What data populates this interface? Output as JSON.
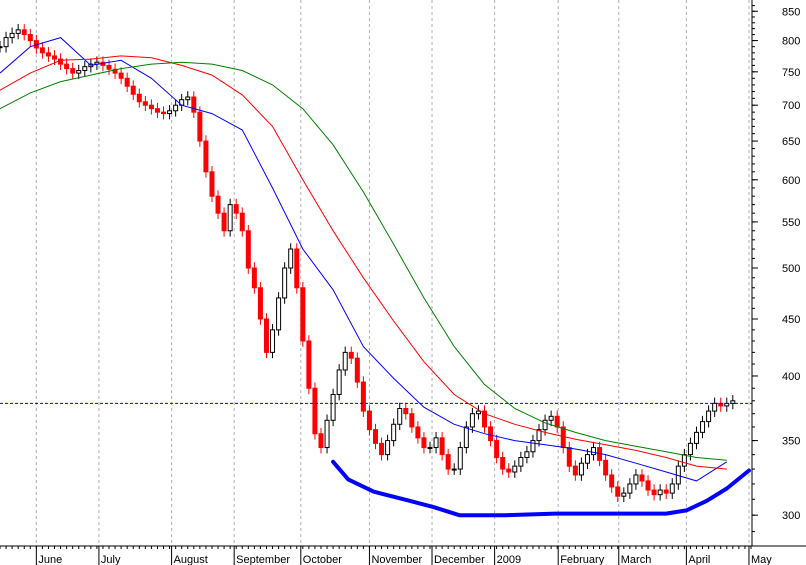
{
  "chart_data": {
    "type": "candlestick",
    "y_ticks": [
      300,
      350,
      400,
      450,
      500,
      550,
      600,
      650,
      700,
      750,
      800,
      850
    ],
    "x_ticks": [
      "June",
      "July",
      "August",
      "September",
      "October",
      "November",
      "December",
      "2009",
      "February",
      "March",
      "April",
      "May"
    ],
    "ylim": [
      285,
      870
    ],
    "y_scale": "log",
    "grid": "vertical-dotted",
    "reference_line": {
      "value": 378
    },
    "colors": {
      "up": "#000000",
      "down": "#ff0000",
      "ma_short": "#0000ff",
      "ma_mid": "#ff0000",
      "ma_long": "#008000",
      "trend": "#0000ff",
      "reference": "#0000ff",
      "grid": "#b0b0b0"
    },
    "series": [
      {
        "kind": "price",
        "x": [
          0,
          6,
          12,
          18,
          24,
          30,
          36,
          42,
          48,
          54,
          60,
          66,
          72,
          78,
          84,
          90,
          96,
          102,
          108,
          114,
          120,
          126,
          132,
          138,
          144,
          150,
          156,
          162,
          168,
          174,
          180,
          186,
          192,
          198,
          204,
          210,
          216,
          222,
          228,
          234,
          240,
          246,
          252,
          258,
          264,
          270,
          276,
          282,
          288,
          294,
          300,
          306,
          312,
          318,
          324,
          330,
          336,
          342,
          348,
          354,
          360,
          366,
          372,
          378,
          384,
          390,
          396,
          402,
          408,
          414,
          420,
          426,
          432,
          438,
          444,
          450,
          456,
          462,
          468,
          474,
          480,
          486,
          492,
          498,
          504,
          510,
          516,
          522,
          528,
          534,
          540,
          546,
          552,
          558,
          564,
          570,
          576,
          582,
          588,
          594,
          600,
          606,
          612,
          618,
          624,
          630,
          636,
          642,
          648,
          654,
          660,
          666,
          672,
          678,
          684,
          690,
          696,
          702,
          708,
          714,
          720,
          726
        ],
        "y": [
          790,
          805,
          812,
          818,
          810,
          800,
          788,
          780,
          775,
          770,
          762,
          755,
          748,
          752,
          758,
          762,
          765,
          760,
          754,
          748,
          740,
          728,
          716,
          705,
          700,
          695,
          690,
          688,
          692,
          700,
          708,
          712,
          690,
          650,
          610,
          580,
          560,
          540,
          570,
          560,
          540,
          500,
          480,
          450,
          420,
          440,
          470,
          500,
          520,
          480,
          430,
          390,
          355,
          345,
          365,
          385,
          405,
          420,
          415,
          395,
          372,
          358,
          348,
          340,
          350,
          362,
          374,
          370,
          360,
          352,
          345,
          345,
          352,
          340,
          330,
          330,
          345,
          360,
          370,
          372,
          360,
          350,
          338,
          330,
          328,
          332,
          338,
          342,
          350,
          358,
          365,
          368,
          360,
          345,
          332,
          326,
          334,
          340,
          345,
          336,
          326,
          318,
          312,
          314,
          320,
          326,
          322,
          316,
          313,
          316,
          314,
          320,
          332,
          340,
          348,
          356,
          364,
          372,
          378,
          376,
          378,
          380
        ]
      },
      {
        "kind": "ma_short",
        "x": [
          0,
          30,
          60,
          90,
          120,
          150,
          180,
          210,
          240,
          270,
          300,
          330,
          360,
          390,
          420,
          450,
          480,
          510,
          540,
          570,
          600,
          630,
          660,
          690,
          720
        ],
        "y": [
          748,
          790,
          805,
          760,
          768,
          740,
          700,
          688,
          665,
          590,
          520,
          478,
          425,
          398,
          375,
          362,
          355,
          350,
          347,
          344,
          340,
          334,
          328,
          322,
          335
        ]
      },
      {
        "kind": "ma_mid",
        "x": [
          0,
          30,
          60,
          90,
          120,
          150,
          180,
          210,
          240,
          270,
          300,
          330,
          360,
          390,
          420,
          450,
          480,
          510,
          540,
          570,
          600,
          630,
          660,
          690,
          720
        ],
        "y": [
          722,
          748,
          768,
          770,
          775,
          772,
          760,
          745,
          715,
          670,
          600,
          540,
          490,
          448,
          412,
          385,
          370,
          362,
          356,
          351,
          347,
          343,
          338,
          332,
          330
        ]
      },
      {
        "kind": "ma_long",
        "x": [
          0,
          30,
          60,
          90,
          120,
          150,
          180,
          210,
          240,
          270,
          300,
          330,
          360,
          390,
          420,
          450,
          480,
          510,
          540,
          570,
          600,
          630,
          660,
          690,
          720
        ],
        "y": [
          695,
          718,
          735,
          745,
          755,
          762,
          765,
          762,
          752,
          730,
          695,
          645,
          585,
          525,
          470,
          425,
          393,
          374,
          363,
          356,
          350,
          346,
          342,
          338,
          336
        ]
      },
      {
        "kind": "trend",
        "x": [
          330,
          345,
          370,
          400,
          430,
          455,
          500,
          550,
          600,
          640,
          660,
          680,
          700,
          720,
          742
        ],
        "y": [
          335,
          323,
          315,
          310,
          305,
          300,
          300,
          301,
          301,
          301,
          301,
          303,
          309,
          317,
          329
        ]
      }
    ]
  }
}
